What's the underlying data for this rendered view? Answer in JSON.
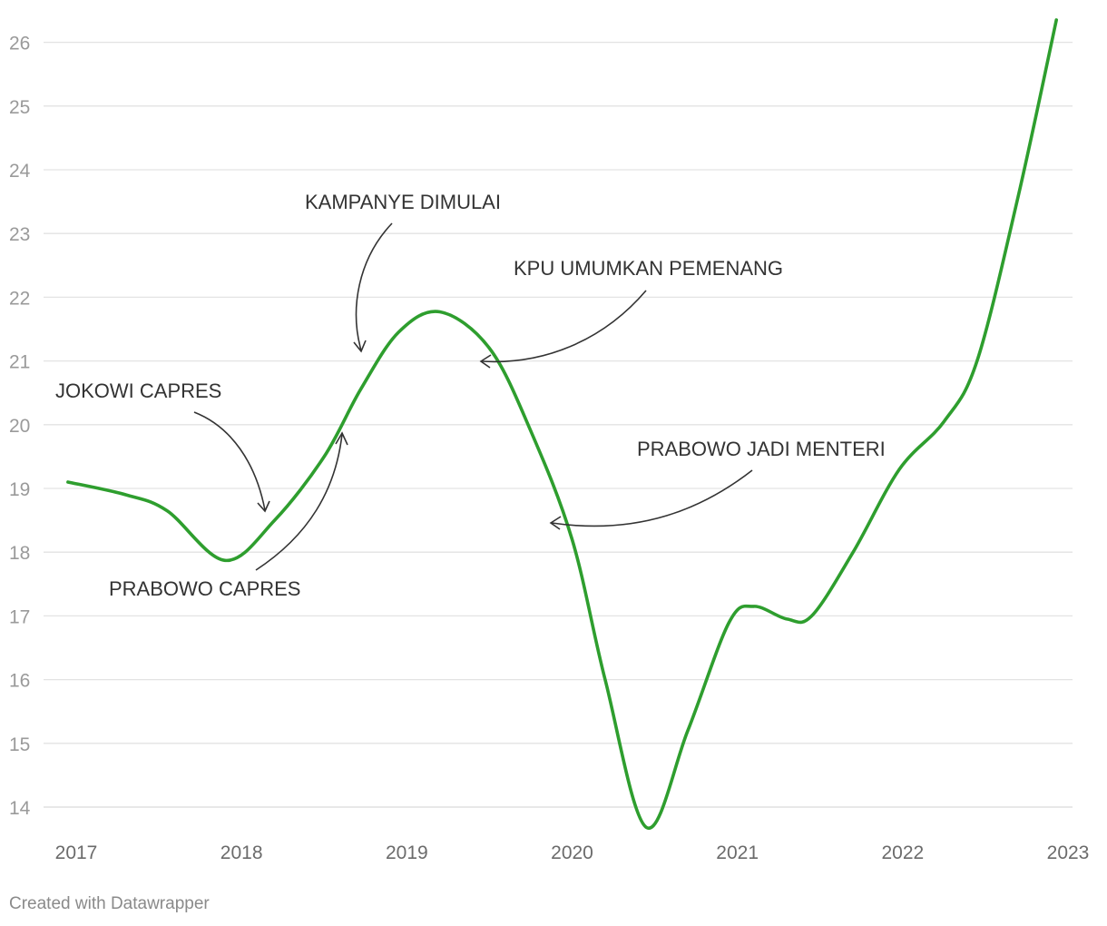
{
  "chart_data": {
    "type": "line",
    "title": "",
    "xlabel": "",
    "ylabel": "",
    "xlim": [
      2017,
      2023
    ],
    "ylim": [
      14,
      26
    ],
    "x_ticks": [
      "2017",
      "2018",
      "2019",
      "2020",
      "2021",
      "2022",
      "2023"
    ],
    "y_ticks": [
      "14",
      "15",
      "16",
      "17",
      "18",
      "19",
      "20",
      "21",
      "22",
      "23",
      "24",
      "25",
      "26"
    ],
    "grid": true,
    "line_color": "#2e9e2e",
    "series": [
      {
        "name": "",
        "x": [
          2016.95,
          2017.3,
          2017.55,
          2017.9,
          2018.2,
          2018.5,
          2018.72,
          2018.95,
          2019.2,
          2019.5,
          2019.75,
          2020.0,
          2020.2,
          2020.45,
          2020.7,
          2020.95,
          2021.1,
          2021.3,
          2021.45,
          2021.7,
          2021.98,
          2022.25,
          2022.45,
          2022.7,
          2022.93
        ],
        "y": [
          19.1,
          18.9,
          18.65,
          17.87,
          18.5,
          19.5,
          20.55,
          21.45,
          21.77,
          21.2,
          19.9,
          18.2,
          16.0,
          13.68,
          15.2,
          16.9,
          17.15,
          16.95,
          17.0,
          18.0,
          19.3,
          20.05,
          21.0,
          23.6,
          26.35
        ]
      }
    ],
    "annotations": [
      {
        "text": "JOKOWI CAPRES"
      },
      {
        "text": "PRABOWO CAPRES"
      },
      {
        "text": "KAMPANYE DIMULAI"
      },
      {
        "text": "KPU UMUMKAN PEMENANG"
      },
      {
        "text": "PRABOWO JADI MENTERI"
      }
    ]
  },
  "footer": {
    "credit": "Created with Datawrapper"
  }
}
